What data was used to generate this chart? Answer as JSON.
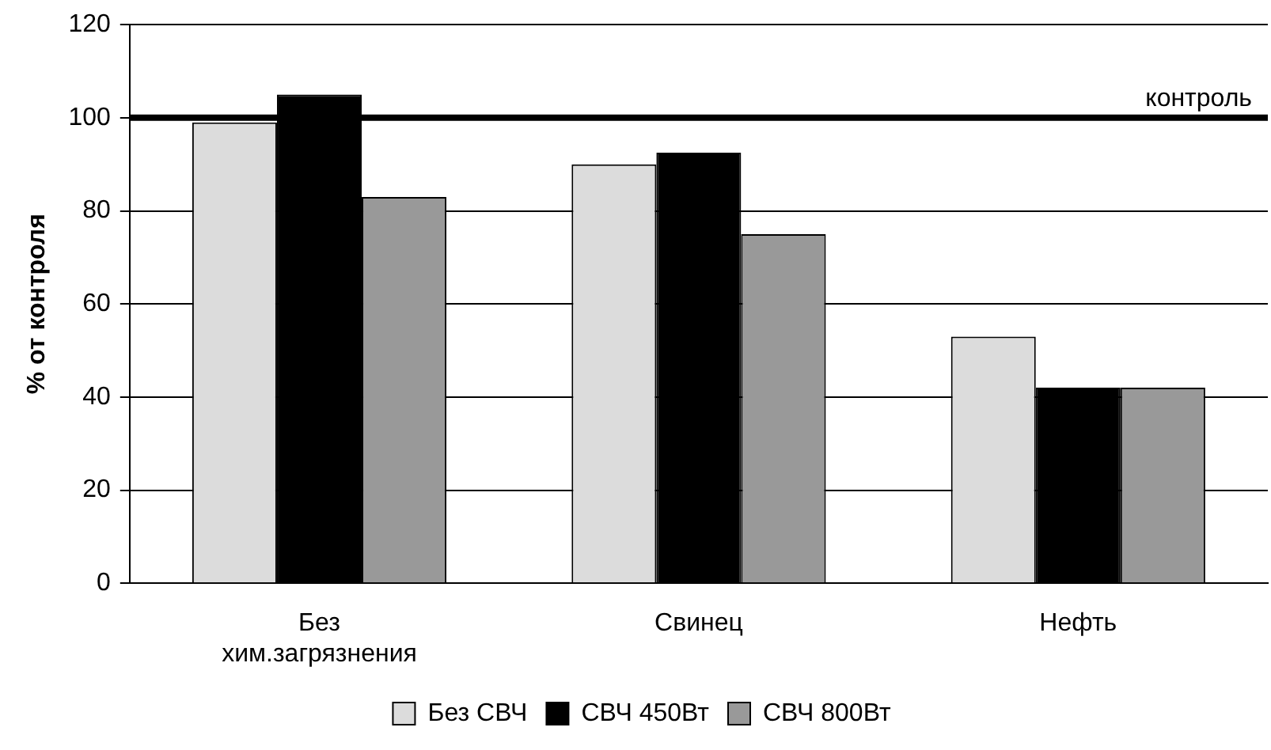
{
  "chart_data": {
    "type": "bar",
    "ylabel": "% от контроля",
    "categories": [
      "Без\nхим.загрязнения",
      "Свинец",
      "Нефть"
    ],
    "series": [
      {
        "name": "Без СВЧ",
        "color": "#dcdcdc",
        "values": [
          99,
          90,
          53
        ]
      },
      {
        "name": "СВЧ 450Вт",
        "color": "#000000",
        "values": [
          105,
          92.5,
          42
        ]
      },
      {
        "name": "СВЧ 800Вт",
        "color": "#999999",
        "values": [
          83,
          75,
          42
        ]
      }
    ],
    "ylim": [
      0,
      120
    ],
    "yticks": [
      0,
      20,
      40,
      60,
      80,
      100,
      120
    ],
    "grid": "y",
    "legend": "bottom",
    "ref_lines": [
      {
        "axis": "y",
        "value": 100,
        "label": "контроль",
        "color": "#000000"
      }
    ]
  }
}
